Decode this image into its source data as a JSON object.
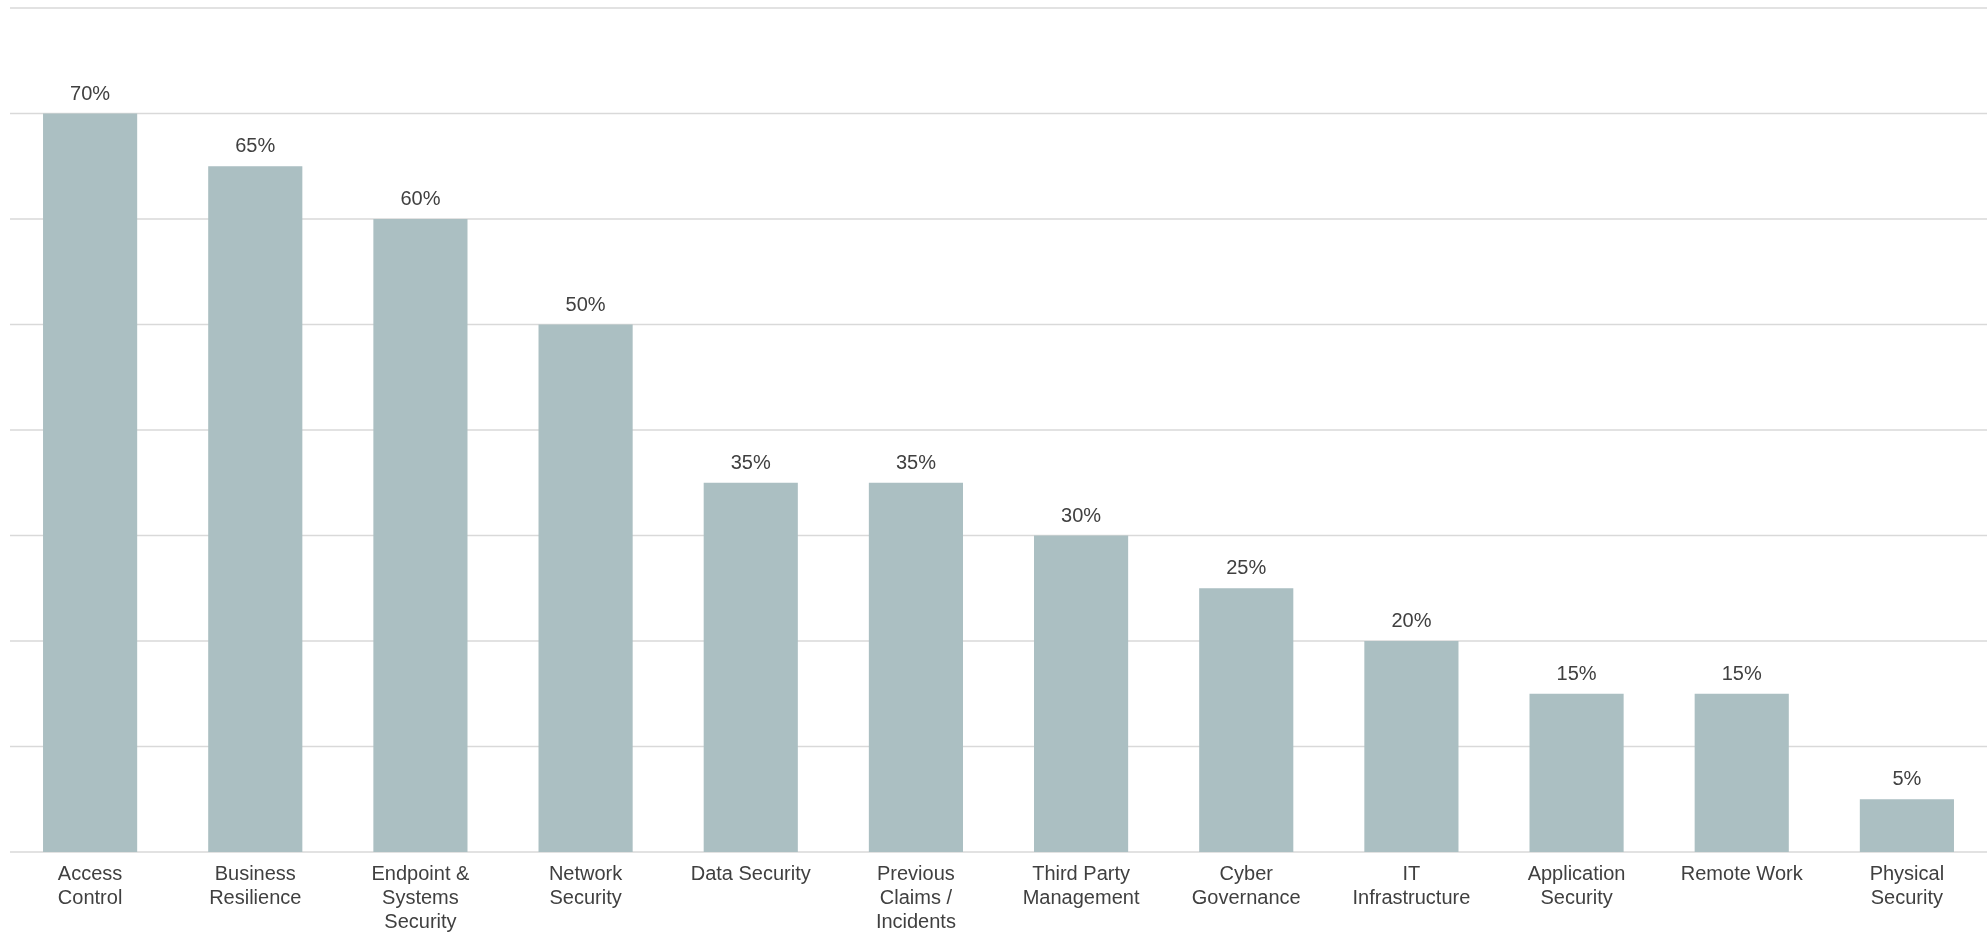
{
  "chart_data": {
    "type": "bar",
    "categories": [
      "Access Control",
      "Business Resilience",
      "Endpoint & Systems Security",
      "Network Security",
      "Data Security",
      "Previous Claims / Incidents",
      "Third Party Management",
      "Cyber Governance",
      "IT Infrastructure",
      "Application Security",
      "Remote Work",
      "Physical Security"
    ],
    "values": [
      70,
      65,
      60,
      50,
      35,
      35,
      30,
      25,
      20,
      15,
      15,
      5
    ],
    "value_labels": [
      "70%",
      "65%",
      "60%",
      "50%",
      "35%",
      "35%",
      "30%",
      "25%",
      "20%",
      "15%",
      "15%",
      "5%"
    ],
    "color": "#abbfc2",
    "ylim": [
      0,
      80
    ],
    "yticks": [
      {
        "value": 0,
        "label": null
      },
      {
        "value": 10,
        "label": null
      },
      {
        "value": 20,
        "label": null
      },
      {
        "value": 30,
        "label": null
      },
      {
        "value": 40,
        "label": null
      },
      {
        "value": 50,
        "label": null
      },
      {
        "value": 60,
        "label": null
      },
      {
        "value": 70,
        "label": null
      },
      {
        "value": 80,
        "label": null
      }
    ],
    "tick_labels": "x",
    "grid": "y"
  }
}
